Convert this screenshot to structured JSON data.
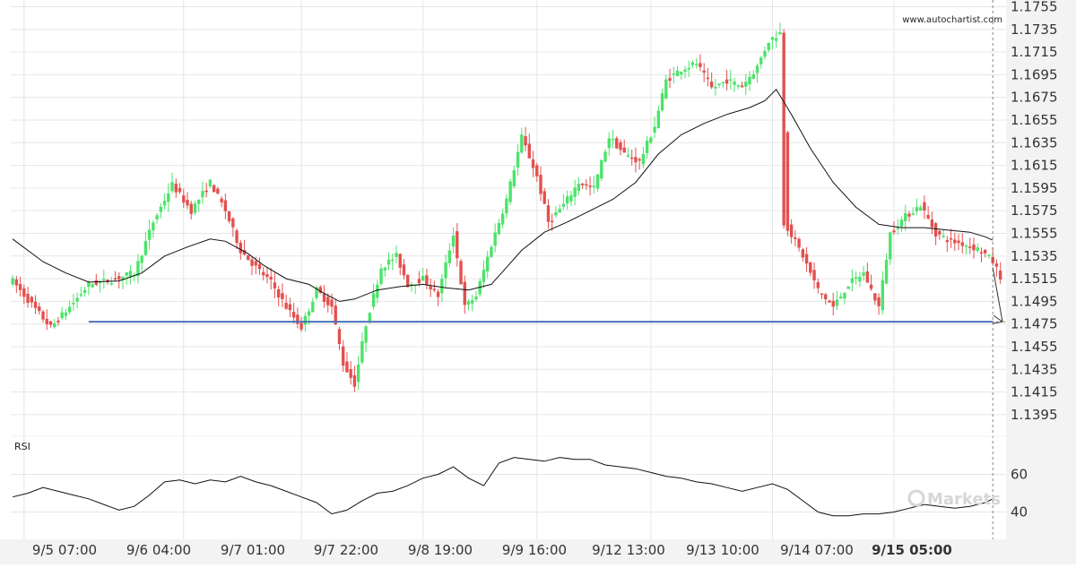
{
  "source": "www.autochartist.com",
  "watermark": "Markets",
  "colors": {
    "bull": "#4ce36a",
    "bear": "#e2504e",
    "level": "#4a72b8",
    "ma": "#111111",
    "grid": "#e6e6e6",
    "axis_bg": "#f3f3f3"
  },
  "chart_data": [
    {
      "type": "candlestick",
      "ylim": [
        1.1385,
        1.1755
      ],
      "y_ticks": [
        "1.1755",
        "1.1735",
        "1.1715",
        "1.1695",
        "1.1675",
        "1.1655",
        "1.1635",
        "1.1615",
        "1.1595",
        "1.1575",
        "1.1555",
        "1.1535",
        "1.1515",
        "1.1495",
        "1.1475",
        "1.1455",
        "1.1435",
        "1.1415",
        "1.1395"
      ],
      "x_labels": [
        "9/5 07:00",
        "9/6 04:00",
        "9/7 01:00",
        "9/7 22:00",
        "9/8 19:00",
        "9/9 16:00",
        "9/12 13:00",
        "9/13 10:00",
        "9/14 07:00",
        "9/15 05:00"
      ],
      "highlight_x_label": "9/15 05:00",
      "support_level": 1.1477,
      "forecast": {
        "from": 1.1525,
        "to": 1.1477
      },
      "price_path": [
        [
          0,
          1.1513
        ],
        [
          6,
          1.1488
        ],
        [
          10,
          1.1472
        ],
        [
          15,
          1.149
        ],
        [
          20,
          1.151
        ],
        [
          26,
          1.1514
        ],
        [
          32,
          1.152
        ],
        [
          37,
          1.1565
        ],
        [
          42,
          1.1598
        ],
        [
          47,
          1.1575
        ],
        [
          52,
          1.16
        ],
        [
          56,
          1.1575
        ],
        [
          60,
          1.154
        ],
        [
          64,
          1.1525
        ],
        [
          68,
          1.1512
        ],
        [
          72,
          1.149
        ],
        [
          76,
          1.1472
        ],
        [
          80,
          1.1505
        ],
        [
          84,
          1.149
        ],
        [
          87,
          1.144
        ],
        [
          90,
          1.1422
        ],
        [
          93,
          1.1475
        ],
        [
          97,
          1.1525
        ],
        [
          101,
          1.1535
        ],
        [
          104,
          1.151
        ],
        [
          108,
          1.1515
        ],
        [
          112,
          1.15
        ],
        [
          116,
          1.1555
        ],
        [
          119,
          1.149
        ],
        [
          122,
          1.15
        ],
        [
          126,
          1.1545
        ],
        [
          130,
          1.1585
        ],
        [
          134,
          1.164
        ],
        [
          138,
          1.1605
        ],
        [
          141,
          1.1565
        ],
        [
          145,
          1.158
        ],
        [
          149,
          1.16
        ],
        [
          153,
          1.1595
        ],
        [
          157,
          1.164
        ],
        [
          161,
          1.1625
        ],
        [
          165,
          1.1618
        ],
        [
          169,
          1.165
        ],
        [
          172,
          1.169
        ],
        [
          176,
          1.17
        ],
        [
          180,
          1.1705
        ],
        [
          184,
          1.1683
        ],
        [
          188,
          1.169
        ],
        [
          192,
          1.1685
        ],
        [
          196,
          1.1702
        ],
        [
          199,
          1.1725
        ],
        [
          202,
          1.1732
        ],
        [
          204,
          1.156
        ],
        [
          208,
          1.1535
        ],
        [
          212,
          1.1505
        ],
        [
          216,
          1.149
        ],
        [
          220,
          1.151
        ],
        [
          224,
          1.152
        ],
        [
          228,
          1.149
        ],
        [
          231,
          1.1555
        ],
        [
          235,
          1.157
        ],
        [
          239,
          1.158
        ],
        [
          243,
          1.1555
        ],
        [
          247,
          1.1548
        ],
        [
          251,
          1.1545
        ],
        [
          255,
          1.154
        ],
        [
          258,
          1.153
        ],
        [
          260,
          1.1517
        ]
      ],
      "moving_average": [
        [
          0,
          1.155
        ],
        [
          8,
          1.153
        ],
        [
          14,
          1.152
        ],
        [
          20,
          1.1512
        ],
        [
          28,
          1.1513
        ],
        [
          34,
          1.152
        ],
        [
          40,
          1.1535
        ],
        [
          46,
          1.1543
        ],
        [
          52,
          1.155
        ],
        [
          56,
          1.1548
        ],
        [
          62,
          1.1537
        ],
        [
          66,
          1.1527
        ],
        [
          72,
          1.1515
        ],
        [
          78,
          1.151
        ],
        [
          82,
          1.1502
        ],
        [
          86,
          1.1495
        ],
        [
          90,
          1.1497
        ],
        [
          96,
          1.1505
        ],
        [
          102,
          1.1508
        ],
        [
          108,
          1.151
        ],
        [
          114,
          1.1507
        ],
        [
          120,
          1.1505
        ],
        [
          126,
          1.151
        ],
        [
          130,
          1.1525
        ],
        [
          134,
          1.154
        ],
        [
          140,
          1.1556
        ],
        [
          146,
          1.1565
        ],
        [
          152,
          1.1575
        ],
        [
          158,
          1.1585
        ],
        [
          164,
          1.16
        ],
        [
          170,
          1.1625
        ],
        [
          176,
          1.1642
        ],
        [
          182,
          1.1652
        ],
        [
          188,
          1.166
        ],
        [
          194,
          1.1666
        ],
        [
          198,
          1.1672
        ],
        [
          201,
          1.1682
        ],
        [
          205,
          1.166
        ],
        [
          210,
          1.163
        ],
        [
          216,
          1.16
        ],
        [
          222,
          1.1578
        ],
        [
          228,
          1.1563
        ],
        [
          234,
          1.156
        ],
        [
          240,
          1.156
        ],
        [
          246,
          1.1558
        ],
        [
          252,
          1.1556
        ],
        [
          256,
          1.1552
        ],
        [
          258,
          1.1549
        ]
      ]
    },
    {
      "type": "line",
      "title": "RSI",
      "ylim": [
        30,
        70
      ],
      "y_ticks": [
        60,
        40
      ],
      "values": [
        [
          0,
          48
        ],
        [
          4,
          50
        ],
        [
          8,
          53
        ],
        [
          12,
          51
        ],
        [
          16,
          49
        ],
        [
          20,
          47
        ],
        [
          24,
          44
        ],
        [
          28,
          41
        ],
        [
          32,
          43
        ],
        [
          36,
          49
        ],
        [
          40,
          56
        ],
        [
          44,
          57
        ],
        [
          48,
          55
        ],
        [
          52,
          57
        ],
        [
          56,
          56
        ],
        [
          60,
          59
        ],
        [
          64,
          56
        ],
        [
          68,
          54
        ],
        [
          72,
          51
        ],
        [
          76,
          48
        ],
        [
          80,
          45
        ],
        [
          84,
          39
        ],
        [
          88,
          41
        ],
        [
          92,
          46
        ],
        [
          96,
          50
        ],
        [
          100,
          51
        ],
        [
          104,
          54
        ],
        [
          108,
          58
        ],
        [
          112,
          60
        ],
        [
          116,
          64
        ],
        [
          120,
          58
        ],
        [
          124,
          54
        ],
        [
          128,
          66
        ],
        [
          132,
          69
        ],
        [
          136,
          68
        ],
        [
          140,
          67
        ],
        [
          144,
          69
        ],
        [
          148,
          68
        ],
        [
          152,
          68
        ],
        [
          156,
          65
        ],
        [
          160,
          64
        ],
        [
          164,
          63
        ],
        [
          168,
          61
        ],
        [
          172,
          59
        ],
        [
          176,
          58
        ],
        [
          180,
          56
        ],
        [
          184,
          55
        ],
        [
          188,
          53
        ],
        [
          192,
          51
        ],
        [
          196,
          53
        ],
        [
          200,
          55
        ],
        [
          204,
          52
        ],
        [
          208,
          46
        ],
        [
          212,
          40
        ],
        [
          216,
          38
        ],
        [
          220,
          38
        ],
        [
          224,
          39
        ],
        [
          228,
          39
        ],
        [
          232,
          40
        ],
        [
          236,
          42
        ],
        [
          240,
          44
        ],
        [
          244,
          43
        ],
        [
          248,
          42
        ],
        [
          252,
          43
        ],
        [
          256,
          45
        ],
        [
          258,
          47
        ]
      ]
    }
  ]
}
